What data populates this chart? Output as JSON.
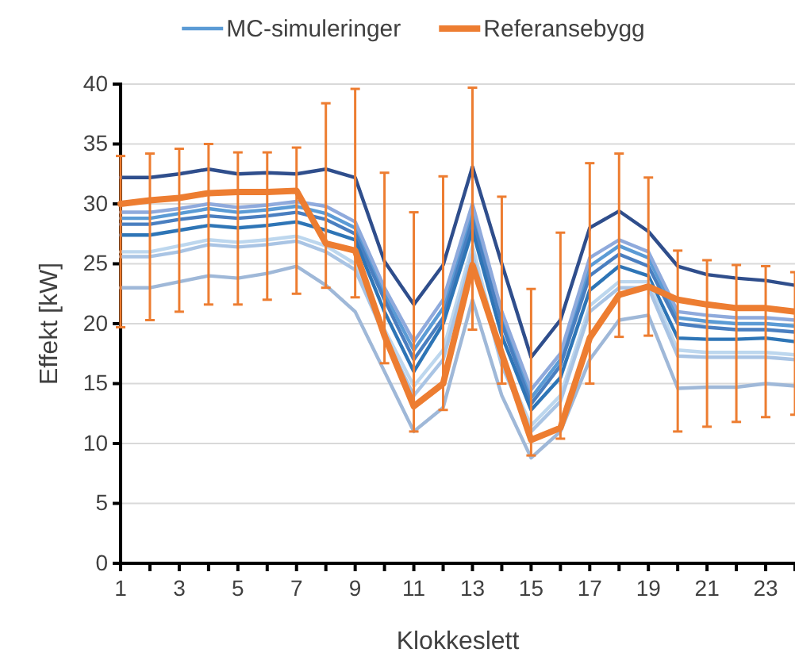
{
  "chart_data": {
    "type": "line",
    "xlabel": "Klokkeslett",
    "ylabel": "Effekt [kW]",
    "x": [
      1,
      2,
      3,
      4,
      5,
      6,
      7,
      8,
      9,
      10,
      11,
      12,
      13,
      14,
      15,
      16,
      17,
      18,
      19,
      20,
      21,
      22,
      23,
      24
    ],
    "xlim": [
      1,
      24
    ],
    "xticks": [
      1,
      {
        "value": 2,
        "label": null
      },
      3,
      {
        "value": 4,
        "label": null
      },
      5,
      {
        "value": 6,
        "label": null
      },
      7,
      {
        "value": 8,
        "label": null
      },
      9,
      {
        "value": 10,
        "label": null
      },
      11,
      {
        "value": 12,
        "label": null
      },
      13,
      {
        "value": 14,
        "label": null
      },
      15,
      {
        "value": 16,
        "label": null
      },
      17,
      {
        "value": 18,
        "label": null
      },
      19,
      {
        "value": 20,
        "label": null
      },
      21,
      {
        "value": 22,
        "label": null
      },
      23,
      {
        "value": 24,
        "label": null
      }
    ],
    "ylim": [
      0,
      40
    ],
    "yticks": [
      0,
      5,
      10,
      15,
      20,
      25,
      30,
      35,
      40
    ],
    "grid": "y",
    "legend": "top",
    "marker": "none",
    "line_style": "solid",
    "series": [
      {
        "name": "MC-simuleringer",
        "color": "#5b9bd5",
        "values": [
          28.8,
          28.8,
          29.2,
          29.6,
          29.3,
          29.5,
          29.8,
          29.2,
          28,
          22.5,
          17.8,
          21.3,
          29.2,
          20.5,
          13.8,
          17,
          24.8,
          26.5,
          25.5,
          20.5,
          20.2,
          20,
          20,
          19.8
        ]
      },
      {
        "color": "#2f4e8c",
        "values": [
          32.2,
          32.2,
          32.5,
          32.9,
          32.5,
          32.6,
          32.5,
          32.9,
          32.2,
          25.2,
          21.6,
          24.9,
          33.1,
          25,
          17.2,
          20.3,
          28,
          29.4,
          27.7,
          24.8,
          24.1,
          23.8,
          23.6,
          23.2
        ]
      },
      {
        "color": "#8faadc",
        "values": [
          29.3,
          29.3,
          29.6,
          30,
          29.7,
          29.9,
          30.2,
          29.8,
          28.5,
          23,
          18.5,
          22,
          30,
          21,
          14.5,
          17.5,
          25.5,
          27,
          26,
          21,
          20.7,
          20.5,
          20.5,
          20.3
        ]
      },
      {
        "color": "#4a7fc0",
        "values": [
          28.3,
          28.3,
          28.7,
          29,
          28.8,
          29,
          29.3,
          28.7,
          27.5,
          22,
          17,
          20.5,
          28.6,
          20,
          13.3,
          16.5,
          24,
          25.8,
          24.8,
          20,
          19.7,
          19.5,
          19.5,
          19.3
        ]
      },
      {
        "color": "#2e75b6",
        "values": [
          27.4,
          27.4,
          27.8,
          28.2,
          28,
          28.2,
          28.5,
          27.8,
          27,
          21,
          16,
          20,
          27.8,
          19,
          12.8,
          15.5,
          22.8,
          24.8,
          24,
          18.8,
          18.7,
          18.7,
          18.8,
          18.5
        ]
      },
      {
        "color": "#bdd7ee",
        "values": [
          26,
          26,
          26.5,
          27,
          26.8,
          27,
          27.3,
          26.5,
          25,
          19.5,
          14.8,
          17.8,
          26.5,
          17,
          11.5,
          14,
          21.5,
          23.5,
          23.5,
          17.8,
          17.6,
          17.6,
          17.6,
          17.4
        ]
      },
      {
        "color": "#a9c4e4",
        "values": [
          25.6,
          25.6,
          26,
          26.6,
          26.4,
          26.6,
          26.9,
          26,
          24.5,
          19,
          14,
          17,
          25.8,
          16.5,
          11,
          13.5,
          21,
          23,
          23,
          17.3,
          17.2,
          17.2,
          17.2,
          17
        ]
      },
      {
        "color": "#9fb8d8",
        "values": [
          23,
          23,
          23.5,
          24,
          23.8,
          24.2,
          24.8,
          23.2,
          21,
          16,
          11,
          13,
          22,
          14,
          8.8,
          11,
          17,
          20.3,
          20.7,
          14.6,
          14.7,
          14.7,
          15,
          14.8
        ]
      },
      {
        "name": "Referansebygg",
        "color": "#ed7d31",
        "values": [
          30,
          30.3,
          30.5,
          30.9,
          31,
          31,
          31.1,
          26.7,
          26.1,
          19,
          13.1,
          15,
          24.9,
          17.5,
          10.3,
          11.3,
          18.8,
          22.4,
          23.1,
          22,
          21.6,
          21.3,
          21.3,
          21
        ],
        "errors": [
          [
            19.7,
            34
          ],
          [
            20.3,
            34.2
          ],
          [
            21,
            34.6
          ],
          [
            21.6,
            35
          ],
          [
            21.6,
            34.3
          ],
          [
            22,
            34.3
          ],
          [
            22.5,
            34.7
          ],
          [
            23,
            38.4
          ],
          [
            22.2,
            39.6
          ],
          [
            16.7,
            32.6
          ],
          [
            11,
            29.3
          ],
          [
            12.8,
            32.3
          ],
          [
            19.5,
            39.7
          ],
          [
            15,
            30.6
          ],
          [
            9,
            22.9
          ],
          [
            10.4,
            27.6
          ],
          [
            15,
            33.4
          ],
          [
            18.9,
            34.2
          ],
          [
            19,
            32.2
          ],
          [
            11,
            26.1
          ],
          [
            11.4,
            25.3
          ],
          [
            11.8,
            24.9
          ],
          [
            12.2,
            24.8
          ],
          [
            12.4,
            24.3
          ]
        ]
      }
    ]
  }
}
